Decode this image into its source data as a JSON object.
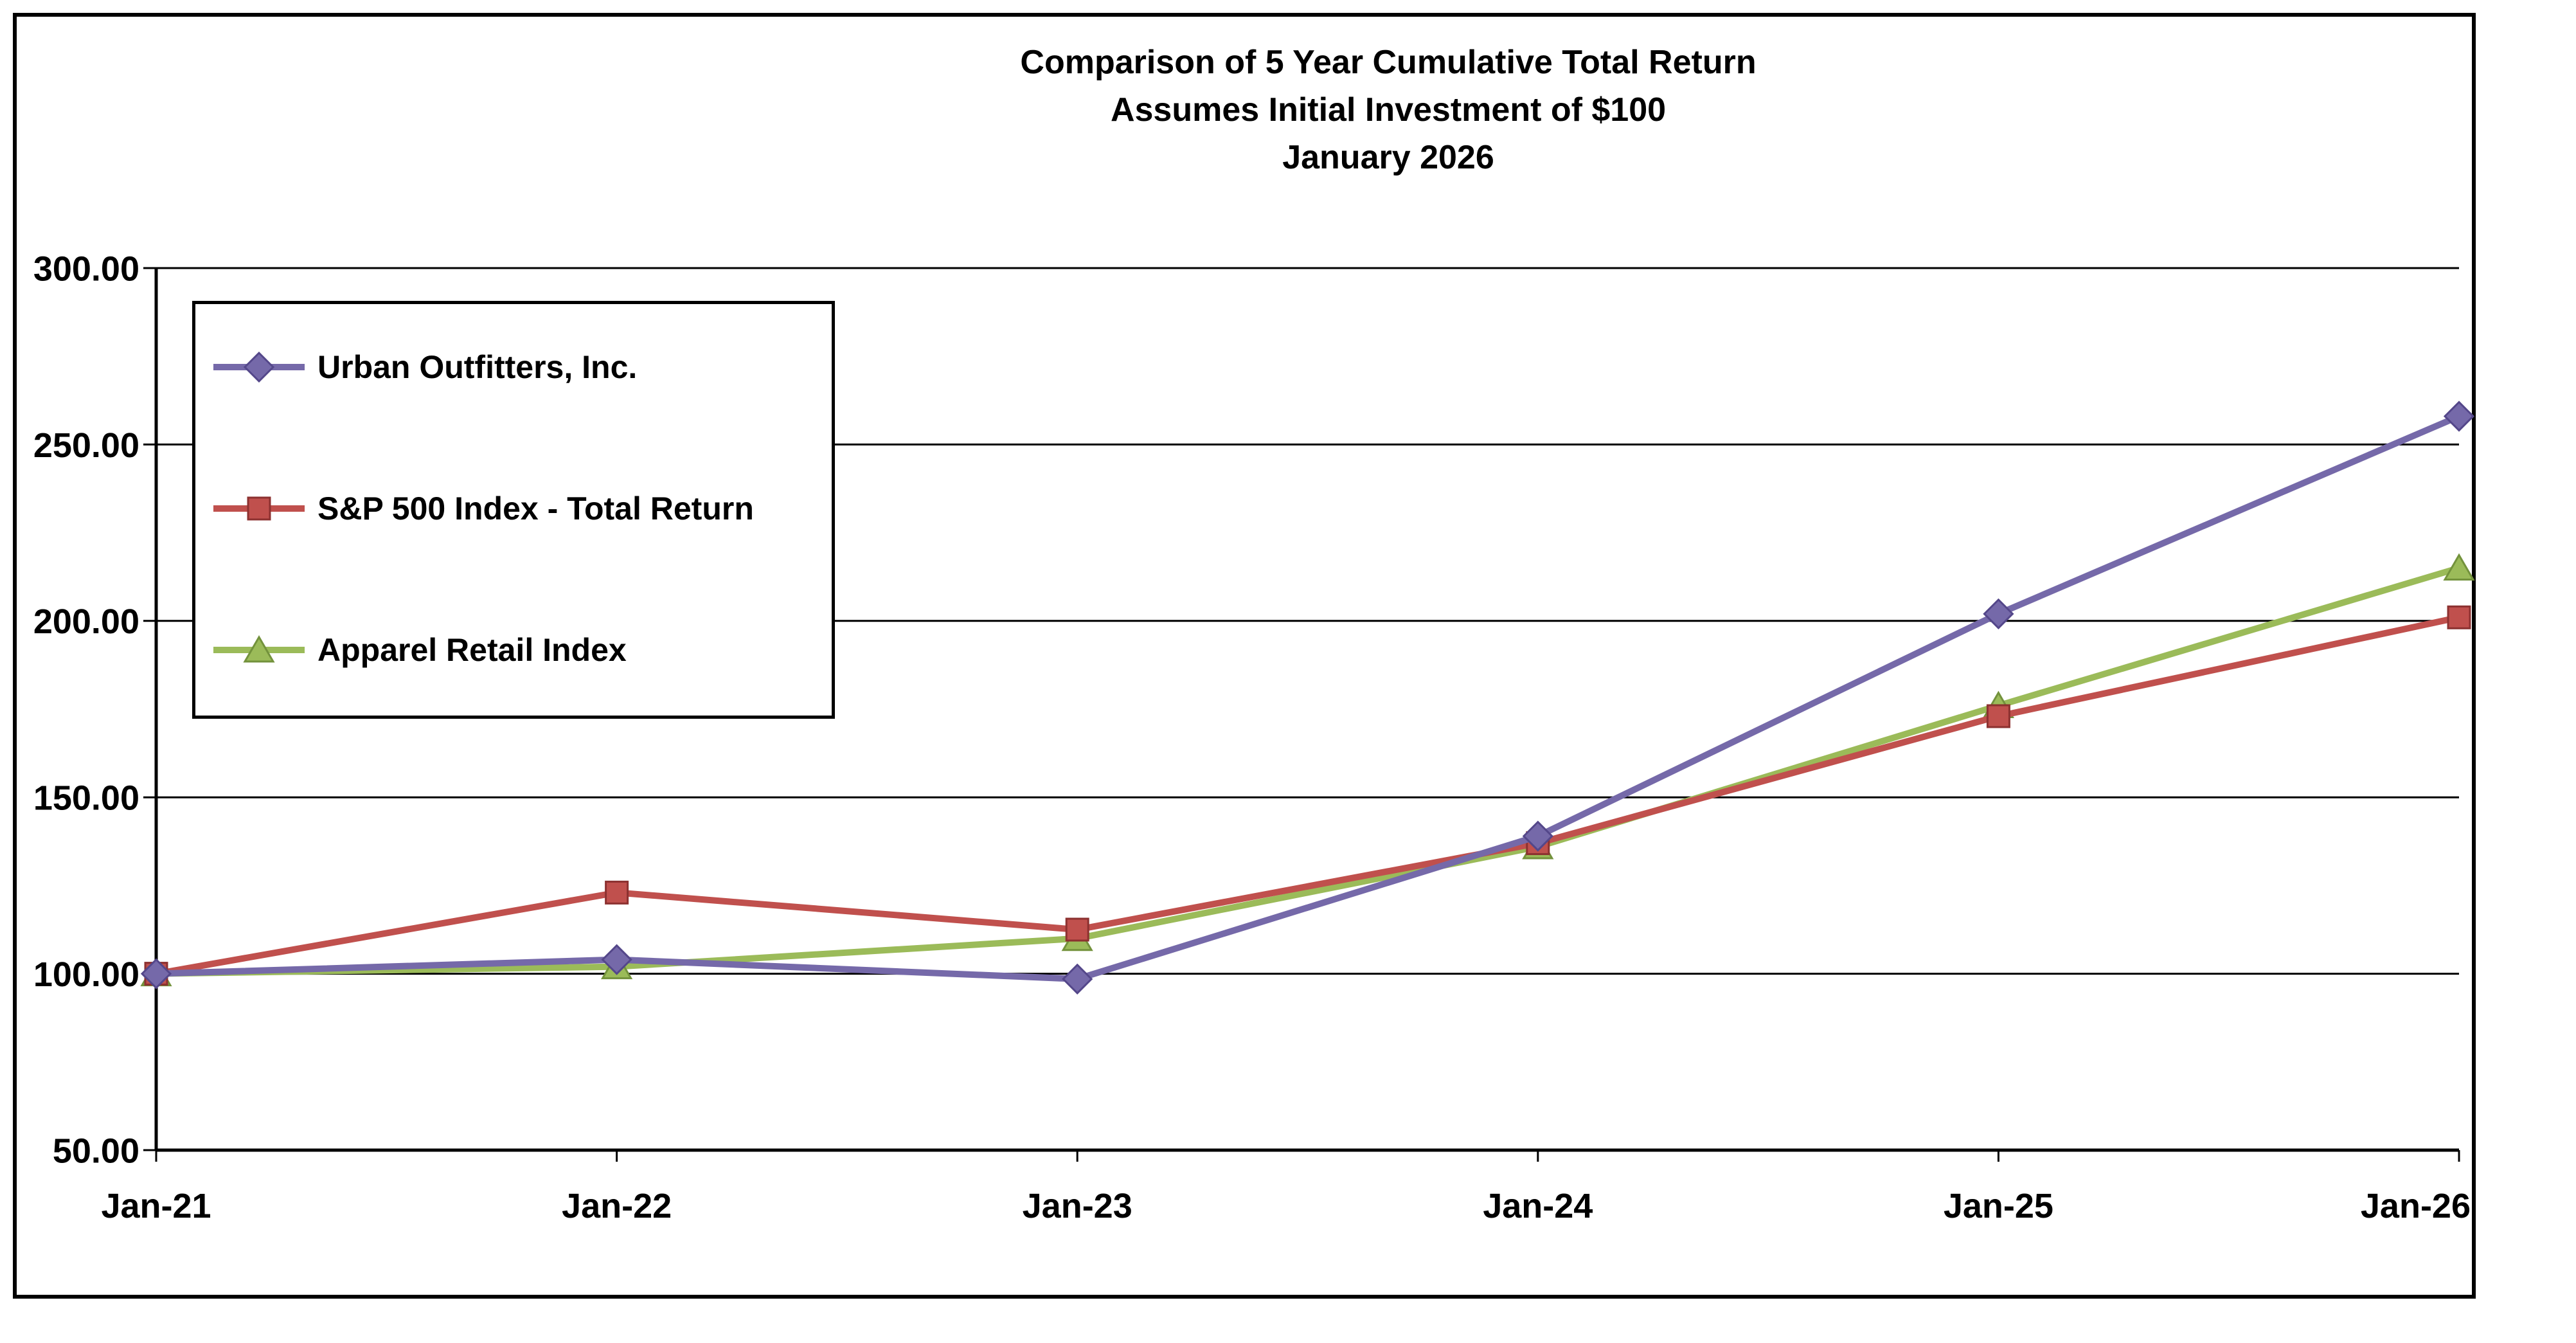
{
  "chart_data": {
    "type": "line",
    "title_lines": [
      "Comparison of 5 Year Cumulative Total Return",
      "Assumes Initial Investment of $100",
      "January 2026"
    ],
    "categories": [
      "Jan-21",
      "Jan-22",
      "Jan-23",
      "Jan-24",
      "Jan-25",
      "Jan-26"
    ],
    "series": [
      {
        "id": "urban-outfitters",
        "name": "Urban Outfitters, Inc.",
        "marker": "diamond",
        "color": "#7569A9",
        "edge_color": "#54478A",
        "values": [
          100,
          104,
          98.5,
          139,
          202,
          258
        ]
      },
      {
        "id": "sp500-total-return",
        "name": "S&P 500 Index - Total Return",
        "marker": "square",
        "color": "#C0504D",
        "edge_color": "#8C3130",
        "values": [
          100,
          123,
          112.5,
          137,
          173,
          201
        ]
      },
      {
        "id": "apparel-retail-index",
        "name": "Apparel Retail Index",
        "marker": "triangle",
        "color": "#9BBB59",
        "edge_color": "#73923C",
        "values": [
          100,
          102,
          110,
          136,
          176,
          215
        ]
      }
    ],
    "ylim": [
      50,
      300
    ],
    "y_ticks": [
      50,
      100,
      150,
      200,
      250,
      300
    ],
    "y_tick_decimals": 2,
    "grid": "horizontal",
    "legend_position": "top-left-inside"
  }
}
